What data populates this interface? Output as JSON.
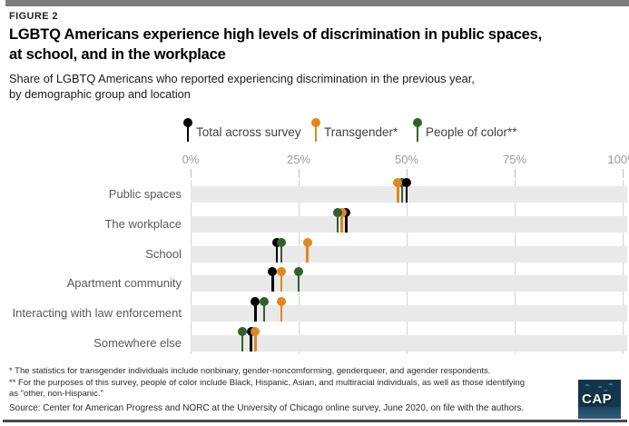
{
  "figure_label": "FIGURE 2",
  "title": {
    "line1": "LGBTQ Americans experience high levels of discrimination in public spaces,",
    "line2": "at school, and in the workplace"
  },
  "subtitle": {
    "line1": "Share of LGBTQ Americans who reported experiencing discrimination in the previous year,",
    "line2": "by demographic group and location"
  },
  "legend": [
    {
      "label": "Total across survey",
      "color": "#000000"
    },
    {
      "label": "Transgender*",
      "color": "#e2861f"
    },
    {
      "label": "People of color**",
      "color": "#31602e"
    }
  ],
  "chart_data": {
    "type": "lollipop",
    "orientation": "horizontal",
    "title": "LGBTQ Americans experience high levels of discrimination in public spaces, at school, and in the workplace",
    "subtitle": "Share of LGBTQ Americans who reported experiencing discrimination in the previous year, by demographic group and location",
    "x_axis": {
      "min": 0,
      "max": 100,
      "unit": "percent",
      "tick_values": [
        0,
        25,
        50,
        75,
        100
      ],
      "tick_labels": [
        "0%",
        "25%",
        "50%",
        "75%",
        "100%"
      ]
    },
    "grid": true,
    "legend_position": "top",
    "series": [
      {
        "key": "total",
        "name": "Total across survey",
        "color": "#000000"
      },
      {
        "key": "transgender",
        "name": "Transgender*",
        "color": "#e2861f"
      },
      {
        "key": "people_of_color",
        "name": "People of color**",
        "color": "#31602e"
      }
    ],
    "categories": [
      "Public spaces",
      "The workplace",
      "School",
      "Apartment community",
      "Interacting with law enforcement",
      "Somewhere else"
    ],
    "rows": [
      {
        "label": "Public spaces",
        "values": {
          "total": 50,
          "transgender": 48,
          "people_of_color": 49
        },
        "draw_order": [
          "people_of_color",
          "transgender",
          "total"
        ]
      },
      {
        "label": "The workplace",
        "values": {
          "total": 36,
          "transgender": 35,
          "people_of_color": 34
        },
        "draw_order": [
          "total",
          "transgender",
          "people_of_color"
        ]
      },
      {
        "label": "School",
        "values": {
          "total": 20,
          "transgender": 27,
          "people_of_color": 21
        },
        "draw_order": [
          "total",
          "people_of_color",
          "transgender"
        ]
      },
      {
        "label": "Apartment community",
        "values": {
          "total": 19,
          "transgender": 21,
          "people_of_color": 25
        },
        "draw_order": [
          "total",
          "transgender",
          "people_of_color"
        ]
      },
      {
        "label": "Interacting with law enforcement",
        "values": {
          "total": 15,
          "transgender": 21,
          "people_of_color": 17
        },
        "draw_order": [
          "total",
          "people_of_color",
          "transgender"
        ]
      },
      {
        "label": "Somewhere else",
        "values": {
          "total": 14,
          "transgender": 15,
          "people_of_color": 12
        },
        "draw_order": [
          "people_of_color",
          "total",
          "transgender"
        ]
      }
    ]
  },
  "footnotes": {
    "line1": "* The statistics for transgender individuals include nonbinary, gender-noncomforming, genderqueer, and agender respondents.",
    "line2": "** For the purposes of this survey, people of color include Black, Hispanic, Asian, and multiracial individuals, as well as those identifying",
    "line3": "as \"other, non-Hispanic.\""
  },
  "source": "Source: Center for American Progress and NORC at the University of Chicago online survey, June 2020, on file with the authors.",
  "logo": {
    "text": "CAP",
    "background": "#14364c",
    "accent": "#2f5d7c"
  }
}
